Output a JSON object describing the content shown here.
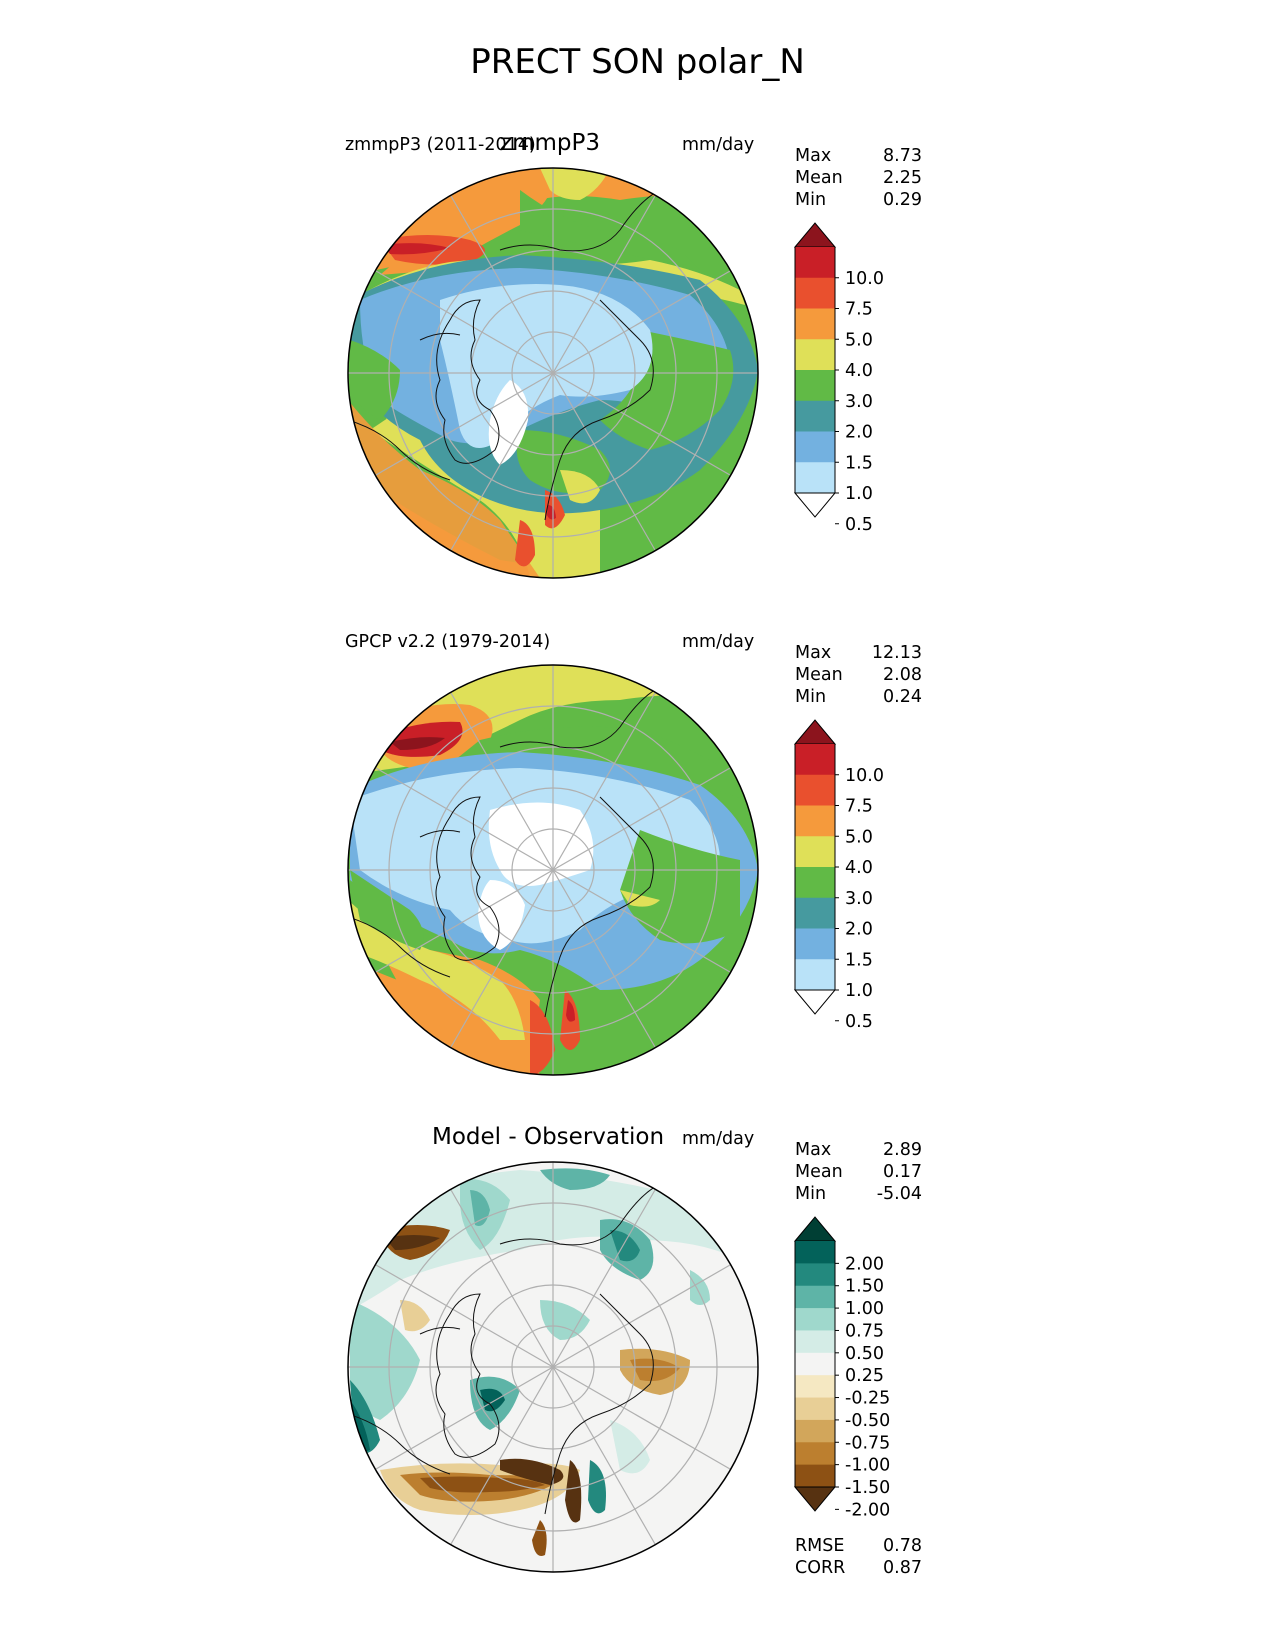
{
  "title": "PRECT SON polar_N",
  "colors": {
    "precip_levels": [
      "#ffffff",
      "#b9e2f8",
      "#73b1e0",
      "#469a9f",
      "#61ba46",
      "#dfe058",
      "#f59a3c",
      "#e9502e",
      "#c91f27",
      "#8c141d"
    ],
    "diff_levels": [
      "#573211",
      "#8d5114",
      "#bc7f2f",
      "#d2a65b",
      "#e8cf96",
      "#f5e8c2",
      "#f4f4f3",
      "#d4ece6",
      "#9fd8cc",
      "#5eb4a7",
      "#23897e",
      "#03625a",
      "#003f34"
    ]
  },
  "panels": [
    {
      "title": "zmmpP3",
      "left_label": "zmmpP3 (2011-2014)",
      "units": "mm/day",
      "stats": {
        "Max": "8.73",
        "Mean": "2.25",
        "Min": "0.29"
      },
      "colorbar": {
        "type": "precip",
        "ticks": [
          "10.0",
          "7.5",
          "5.0",
          "4.0",
          "3.0",
          "2.0",
          "1.5",
          "1.0",
          "0.5"
        ]
      }
    },
    {
      "title": "",
      "left_label": "GPCP v2.2 (1979-2014)",
      "units": "mm/day",
      "stats": {
        "Max": "12.13",
        "Mean": "2.08",
        "Min": "0.24"
      },
      "colorbar": {
        "type": "precip",
        "ticks": [
          "10.0",
          "7.5",
          "5.0",
          "4.0",
          "3.0",
          "2.0",
          "1.5",
          "1.0",
          "0.5"
        ]
      }
    },
    {
      "title": "Model - Observation",
      "left_label": "",
      "units": "mm/day",
      "stats": {
        "Max": "2.89",
        "Mean": "0.17",
        "Min": "-5.04"
      },
      "colorbar": {
        "type": "diff",
        "ticks": [
          "2.00",
          "1.50",
          "1.00",
          "0.75",
          "0.50",
          "0.25",
          "-0.25",
          "-0.50",
          "-0.75",
          "-1.00",
          "-1.50",
          "-2.00"
        ]
      },
      "metrics": {
        "RMSE": "0.78",
        "CORR": "0.87"
      }
    }
  ],
  "chart_data": {
    "type": "heatmap",
    "projection": "north polar stereographic",
    "variable": "PRECT",
    "season": "SON",
    "region": "polar_N",
    "maps": [
      {
        "name": "zmmpP3 (2011-2014)",
        "max": 8.73,
        "mean": 2.25,
        "min": 0.29,
        "units": "mm/day"
      },
      {
        "name": "GPCP v2.2 (1979-2014)",
        "max": 12.13,
        "mean": 2.08,
        "min": 0.24,
        "units": "mm/day"
      },
      {
        "name": "Model - Observation",
        "max": 2.89,
        "mean": 0.17,
        "min": -5.04,
        "units": "mm/day",
        "rmse": 0.78,
        "corr": 0.87
      }
    ],
    "precip_contour_levels": [
      0.5,
      1.0,
      1.5,
      2.0,
      3.0,
      4.0,
      5.0,
      7.5,
      10.0
    ],
    "diff_contour_levels": [
      -2.0,
      -1.5,
      -1.0,
      -0.75,
      -0.5,
      -0.25,
      0.25,
      0.5,
      0.75,
      1.0,
      1.5,
      2.0
    ],
    "grid": true
  }
}
